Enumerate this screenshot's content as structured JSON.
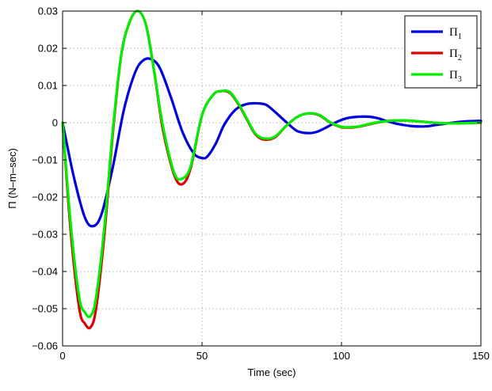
{
  "chart_data": {
    "type": "line",
    "xlabel": "Time (sec)",
    "ylabel": "Π (N–m–sec)",
    "xlim": [
      0,
      150
    ],
    "ylim": [
      -0.06,
      0.03
    ],
    "xticks": [
      0,
      50,
      100,
      150
    ],
    "xtick_labels": [
      "0",
      "50",
      "100",
      "150"
    ],
    "yticks": [
      -0.06,
      -0.05,
      -0.04,
      -0.03,
      -0.02,
      -0.01,
      0,
      0.01,
      0.02,
      0.03
    ],
    "ytick_labels": [
      "−0.06",
      "−0.05",
      "−0.04",
      "−0.03",
      "−0.02",
      "−0.01",
      "0",
      "0.01",
      "0.02",
      "0.03"
    ],
    "grid": true,
    "legend_position": "top-right",
    "series": [
      {
        "name": "Π",
        "subscript": "1",
        "color": "#0000dd",
        "x": [
          0,
          4,
          8,
          11,
          14,
          18,
          22,
          26,
          29,
          32,
          35,
          39,
          43,
          47,
          50,
          52,
          55,
          58,
          62,
          66,
          70,
          73,
          76,
          80,
          84,
          88,
          91,
          94,
          98,
          102,
          106,
          110,
          113,
          116,
          120,
          125,
          130,
          134,
          138,
          142,
          146,
          150
        ],
        "y": [
          0,
          -0.0145,
          -0.0255,
          -0.0278,
          -0.0245,
          -0.012,
          0.0035,
          0.0135,
          0.0168,
          0.017,
          0.0145,
          0.0065,
          -0.0025,
          -0.0082,
          -0.0095,
          -0.009,
          -0.0055,
          -0.0005,
          0.0035,
          0.005,
          0.0052,
          0.0048,
          0.003,
          0.0003,
          -0.0022,
          -0.0028,
          -0.0025,
          -0.0015,
          0.0001,
          0.0012,
          0.0016,
          0.0016,
          0.0012,
          0.0005,
          -0.0003,
          -0.0009,
          -0.001,
          -0.0006,
          -0.0002,
          0.0002,
          0.0004,
          0.0005
        ]
      },
      {
        "name": "Π",
        "subscript": "2",
        "color": "#dd0000",
        "x": [
          0,
          3,
          6,
          8,
          10,
          12,
          15,
          18,
          21,
          24,
          27,
          30,
          33,
          36,
          40,
          43,
          46,
          50,
          54,
          57,
          60,
          63,
          66,
          69,
          72,
          76,
          80,
          84,
          88,
          92,
          96,
          100,
          104,
          108,
          112,
          116,
          120,
          125,
          130,
          135,
          140,
          145,
          150
        ],
        "y": [
          0,
          -0.03,
          -0.05,
          -0.054,
          -0.055,
          -0.05,
          -0.03,
          -0.003,
          0.018,
          0.027,
          0.03,
          0.026,
          0.013,
          -0.002,
          -0.014,
          -0.0165,
          -0.012,
          0.002,
          0.0075,
          0.0085,
          0.008,
          0.005,
          0.001,
          -0.003,
          -0.0045,
          -0.004,
          -0.001,
          0.0015,
          0.0025,
          0.002,
          0.0,
          -0.0012,
          -0.0013,
          -0.0008,
          -0.0001,
          0.0004,
          0.0006,
          0.0005,
          0.0002,
          -0.0001,
          -0.0002,
          -0.0001,
          0.0
        ]
      },
      {
        "name": "Π",
        "subscript": "3",
        "color": "#00ee00",
        "x": [
          0,
          3,
          6,
          8,
          10,
          12,
          15,
          18,
          21,
          24,
          27,
          30,
          33,
          36,
          40,
          43,
          46,
          50,
          54,
          57,
          60,
          63,
          66,
          69,
          72,
          76,
          80,
          84,
          88,
          92,
          96,
          100,
          104,
          108,
          112,
          116,
          120,
          125,
          130,
          135,
          140,
          145,
          150
        ],
        "y": [
          0,
          -0.028,
          -0.047,
          -0.051,
          -0.052,
          -0.047,
          -0.028,
          -0.002,
          0.018,
          0.027,
          0.03,
          0.026,
          0.013,
          -0.001,
          -0.0135,
          -0.015,
          -0.0115,
          0.002,
          0.0075,
          0.0085,
          0.0082,
          0.0052,
          0.0012,
          -0.0028,
          -0.0042,
          -0.0038,
          -0.001,
          0.0015,
          0.0025,
          0.0021,
          0.0001,
          -0.0011,
          -0.0012,
          -0.0007,
          0.0,
          0.0004,
          0.0006,
          0.0005,
          0.0002,
          -0.0001,
          -0.0002,
          -0.0001,
          0.0
        ]
      }
    ]
  }
}
